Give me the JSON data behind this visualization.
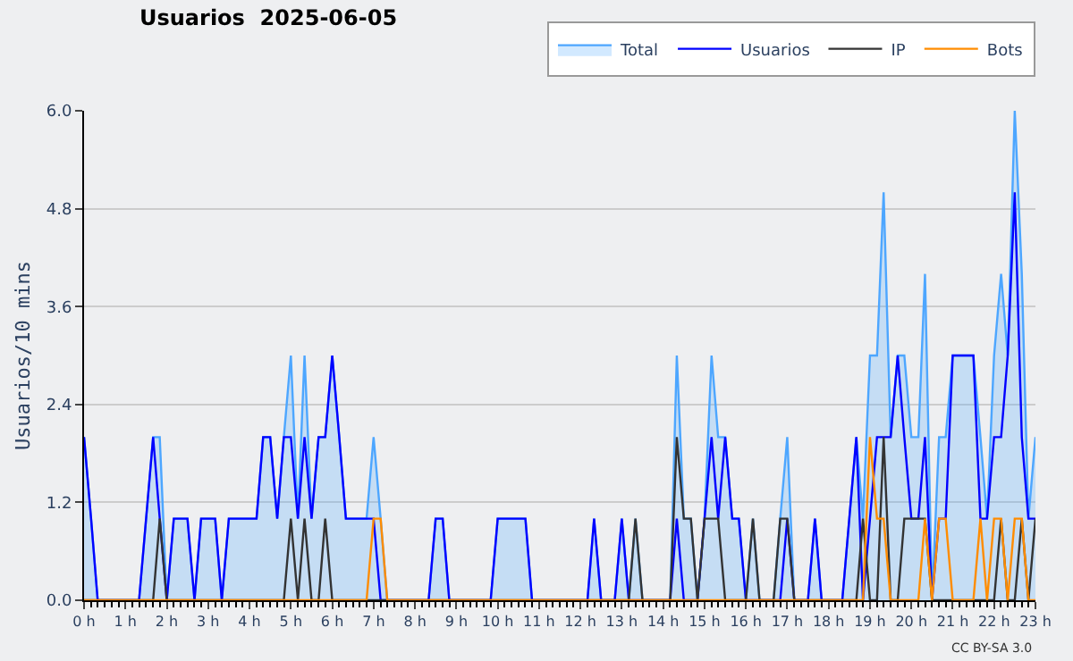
{
  "chart_data": {
    "type": "line",
    "title": "Usuarios  2025-06-05",
    "ylabel": "Usuarios/10 mins",
    "annotations": [
      "CC BY-SA 3.0"
    ],
    "x": [
      0,
      0.17,
      0.33,
      0.5,
      0.67,
      0.83,
      1,
      1.17,
      1.33,
      1.5,
      1.67,
      1.83,
      2,
      2.17,
      2.33,
      2.5,
      2.67,
      2.83,
      3,
      3.17,
      3.33,
      3.5,
      3.67,
      3.83,
      4,
      4.17,
      4.33,
      4.5,
      4.67,
      4.83,
      5,
      5.17,
      5.33,
      5.5,
      5.67,
      5.83,
      6,
      6.17,
      6.33,
      6.5,
      6.67,
      6.83,
      7,
      7.17,
      7.33,
      7.5,
      7.67,
      7.83,
      8,
      8.17,
      8.33,
      8.5,
      8.67,
      8.83,
      9,
      9.17,
      9.33,
      9.5,
      9.67,
      9.83,
      10,
      10.17,
      10.33,
      10.5,
      10.67,
      10.83,
      11,
      11.17,
      11.33,
      11.5,
      11.67,
      11.83,
      12,
      12.17,
      12.33,
      12.5,
      12.67,
      12.83,
      13,
      13.17,
      13.33,
      13.5,
      13.67,
      13.83,
      14,
      14.17,
      14.33,
      14.5,
      14.67,
      14.83,
      15,
      15.17,
      15.33,
      15.5,
      15.67,
      15.83,
      16,
      16.17,
      16.33,
      16.5,
      16.67,
      16.83,
      17,
      17.17,
      17.33,
      17.5,
      17.67,
      17.83,
      18,
      18.17,
      18.33,
      18.5,
      18.67,
      18.83,
      19,
      19.17,
      19.33,
      19.5,
      19.67,
      19.83,
      20,
      20.17,
      20.33,
      20.5,
      20.67,
      20.83,
      21,
      21.17,
      21.33,
      21.5,
      21.67,
      21.83,
      22,
      22.17,
      22.33,
      22.5,
      22.67,
      22.83,
      23
    ],
    "series": [
      {
        "name": "Total",
        "type": "area",
        "color": "#4da6ff",
        "values": [
          2,
          1,
          0,
          0,
          0,
          0,
          0,
          0,
          0,
          1,
          2,
          2,
          0,
          1,
          1,
          1,
          0,
          1,
          1,
          1,
          0,
          1,
          1,
          1,
          1,
          1,
          2,
          2,
          1,
          2,
          3,
          1,
          3,
          1,
          2,
          2,
          3,
          2,
          1,
          1,
          1,
          1,
          2,
          1,
          0,
          0,
          0,
          0,
          0,
          0,
          0,
          1,
          1,
          0,
          0,
          0,
          0,
          0,
          0,
          0,
          1,
          1,
          1,
          1,
          1,
          0,
          0,
          0,
          0,
          0,
          0,
          0,
          0,
          0,
          1,
          0,
          0,
          0,
          1,
          0,
          1,
          0,
          0,
          0,
          0,
          0,
          3,
          1,
          1,
          0,
          1,
          3,
          2,
          2,
          1,
          1,
          0,
          1,
          0,
          0,
          0,
          1,
          2,
          0,
          0,
          0,
          1,
          0,
          0,
          0,
          0,
          1,
          2,
          1,
          3,
          3,
          5,
          2,
          3,
          3,
          2,
          2,
          4,
          0,
          2,
          2,
          3,
          3,
          3,
          3,
          2,
          1,
          3,
          4,
          3,
          6,
          4,
          1,
          2
        ]
      },
      {
        "name": "Usuarios",
        "color": "#0000ff",
        "values": [
          2,
          1,
          0,
          0,
          0,
          0,
          0,
          0,
          0,
          1,
          2,
          1,
          0,
          1,
          1,
          1,
          0,
          1,
          1,
          1,
          0,
          1,
          1,
          1,
          1,
          1,
          2,
          2,
          1,
          2,
          2,
          1,
          2,
          1,
          2,
          2,
          3,
          2,
          1,
          1,
          1,
          1,
          1,
          0,
          0,
          0,
          0,
          0,
          0,
          0,
          0,
          1,
          1,
          0,
          0,
          0,
          0,
          0,
          0,
          0,
          1,
          1,
          1,
          1,
          1,
          0,
          0,
          0,
          0,
          0,
          0,
          0,
          0,
          0,
          1,
          0,
          0,
          0,
          1,
          0,
          0,
          0,
          0,
          0,
          0,
          0,
          1,
          0,
          0,
          0,
          1,
          2,
          1,
          2,
          1,
          1,
          0,
          0,
          0,
          0,
          0,
          0,
          1,
          0,
          0,
          0,
          1,
          0,
          0,
          0,
          0,
          1,
          2,
          0,
          1,
          2,
          2,
          2,
          3,
          2,
          1,
          1,
          2,
          0,
          1,
          1,
          3,
          3,
          3,
          3,
          1,
          1,
          2,
          2,
          3,
          5,
          2,
          1,
          1
        ]
      },
      {
        "name": "IP",
        "color": "#333333",
        "values": [
          0,
          0,
          0,
          0,
          0,
          0,
          0,
          0,
          0,
          0,
          0,
          1,
          0,
          0,
          0,
          0,
          0,
          0,
          0,
          0,
          0,
          0,
          0,
          0,
          0,
          0,
          0,
          0,
          0,
          0,
          1,
          0,
          1,
          0,
          0,
          1,
          0,
          0,
          0,
          0,
          0,
          0,
          0,
          0,
          0,
          0,
          0,
          0,
          0,
          0,
          0,
          0,
          0,
          0,
          0,
          0,
          0,
          0,
          0,
          0,
          0,
          0,
          0,
          0,
          0,
          0,
          0,
          0,
          0,
          0,
          0,
          0,
          0,
          0,
          0,
          0,
          0,
          0,
          0,
          0,
          1,
          0,
          0,
          0,
          0,
          0,
          2,
          1,
          1,
          0,
          1,
          1,
          1,
          0,
          0,
          0,
          0,
          1,
          0,
          0,
          0,
          1,
          1,
          0,
          0,
          0,
          0,
          0,
          0,
          0,
          0,
          0,
          0,
          1,
          0,
          0,
          2,
          0,
          0,
          1,
          1,
          1,
          1,
          0,
          0,
          0,
          0,
          0,
          0,
          0,
          0,
          0,
          0,
          1,
          0,
          0,
          1,
          0,
          1
        ]
      },
      {
        "name": "Bots",
        "color": "#ff8c00",
        "values": [
          0,
          0,
          0,
          0,
          0,
          0,
          0,
          0,
          0,
          0,
          0,
          0,
          0,
          0,
          0,
          0,
          0,
          0,
          0,
          0,
          0,
          0,
          0,
          0,
          0,
          0,
          0,
          0,
          0,
          0,
          0,
          0,
          0,
          0,
          0,
          0,
          0,
          0,
          0,
          0,
          0,
          0,
          1,
          1,
          0,
          0,
          0,
          0,
          0,
          0,
          0,
          0,
          0,
          0,
          0,
          0,
          0,
          0,
          0,
          0,
          0,
          0,
          0,
          0,
          0,
          0,
          0,
          0,
          0,
          0,
          0,
          0,
          0,
          0,
          0,
          0,
          0,
          0,
          0,
          0,
          0,
          0,
          0,
          0,
          0,
          0,
          0,
          0,
          0,
          0,
          0,
          0,
          0,
          0,
          0,
          0,
          0,
          0,
          0,
          0,
          0,
          0,
          0,
          0,
          0,
          0,
          0,
          0,
          0,
          0,
          0,
          0,
          0,
          0,
          2,
          1,
          1,
          0,
          0,
          0,
          0,
          0,
          1,
          0,
          1,
          1,
          0,
          0,
          0,
          0,
          1,
          0,
          1,
          1,
          0,
          1,
          1,
          0,
          0
        ]
      }
    ],
    "xlim": [
      0,
      23
    ],
    "xticks": [
      {
        "value": 0,
        "label": "0 h"
      },
      {
        "value": 1,
        "label": "1 h"
      },
      {
        "value": 2,
        "label": "2 h"
      },
      {
        "value": 3,
        "label": "3 h"
      },
      {
        "value": 4,
        "label": "4 h"
      },
      {
        "value": 5,
        "label": "5 h"
      },
      {
        "value": 6,
        "label": "6 h"
      },
      {
        "value": 7,
        "label": "7 h"
      },
      {
        "value": 8,
        "label": "8 h"
      },
      {
        "value": 9,
        "label": "9 h"
      },
      {
        "value": 10,
        "label": "10 h"
      },
      {
        "value": 11,
        "label": "11 h"
      },
      {
        "value": 12,
        "label": "12 h"
      },
      {
        "value": 13,
        "label": "13 h"
      },
      {
        "value": 14,
        "label": "14 h"
      },
      {
        "value": 15,
        "label": "15 h"
      },
      {
        "value": 16,
        "label": "16 h"
      },
      {
        "value": 17,
        "label": "17 h"
      },
      {
        "value": 18,
        "label": "18 h"
      },
      {
        "value": 19,
        "label": "19 h"
      },
      {
        "value": 20,
        "label": "20 h"
      },
      {
        "value": 21,
        "label": "21 h"
      },
      {
        "value": 22,
        "label": "22 h"
      },
      {
        "value": 23,
        "label": "23 h"
      }
    ],
    "ylim": [
      0,
      6
    ],
    "yticks": [
      {
        "value": 0,
        "label": "0.0"
      },
      1.2,
      2.4,
      3.6,
      4.8,
      {
        "value": 6,
        "label": "6.0"
      }
    ],
    "grid": "y",
    "legend": "top right",
    "marker": "none"
  }
}
